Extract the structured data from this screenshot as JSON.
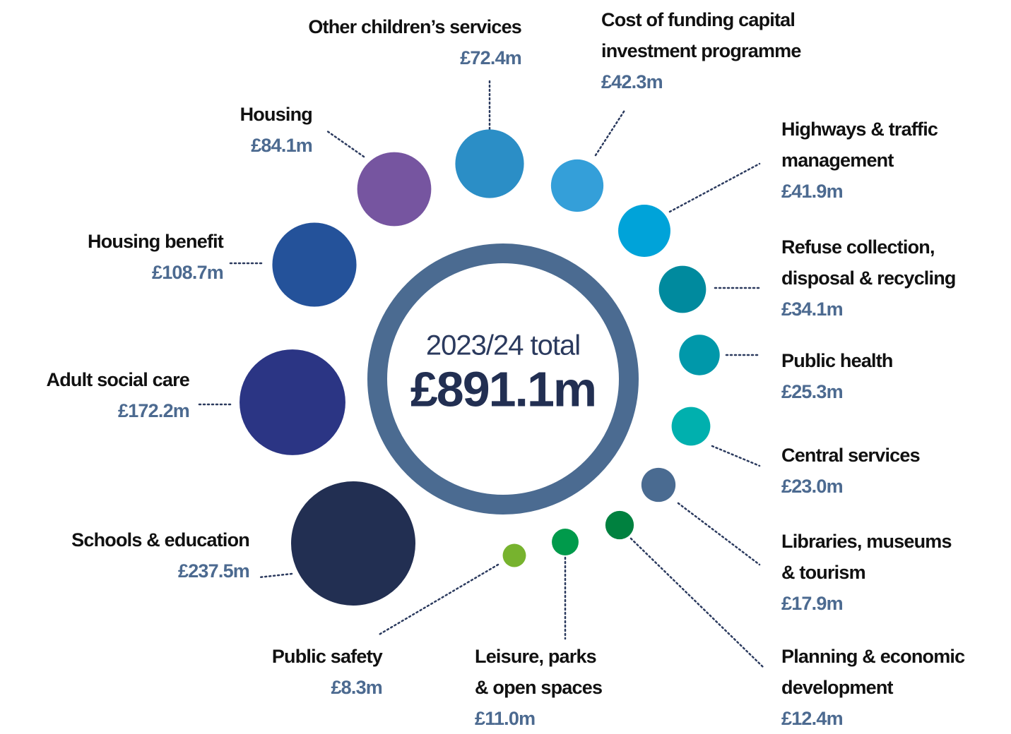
{
  "chart_data": {
    "type": "bubble",
    "center_label": "2023/24 total",
    "total": 891.1,
    "total_label": "£891.1m",
    "categories": [
      "Schools & education",
      "Adult social care",
      "Housing benefit",
      "Housing",
      "Other children’s services",
      "Cost of funding capital\ninvestment programme",
      "Highways & traffic\nmanagement",
      "Refuse collection,\ndisposal & recycling",
      "Public health",
      "Central services",
      "Libraries, museums\n& tourism",
      "Planning & economic\ndevelopment",
      "Leisure, parks\n& open spaces",
      "Public safety"
    ],
    "values": [
      237.5,
      172.2,
      108.7,
      84.1,
      72.4,
      42.3,
      41.9,
      34.1,
      25.3,
      23.0,
      17.9,
      12.4,
      11.0,
      8.3
    ],
    "value_labels": [
      "£237.5m",
      "£172.2m",
      "£108.7m",
      "£84.1m",
      "£72.4m",
      "£42.3m",
      "£41.9m",
      "£34.1m",
      "£25.3m",
      "£23.0m",
      "£17.9m",
      "£12.4m",
      "£11.0m",
      "£8.3m"
    ],
    "colors": [
      "#222f52",
      "#2b3584",
      "#24529a",
      "#7655a0",
      "#2b8ec6",
      "#349fd9",
      "#00a3d9",
      "#008a9e",
      "#0098aa",
      "#00b0ae",
      "#4a6b91",
      "#00813f",
      "#009a4b",
      "#77b32e"
    ]
  }
}
